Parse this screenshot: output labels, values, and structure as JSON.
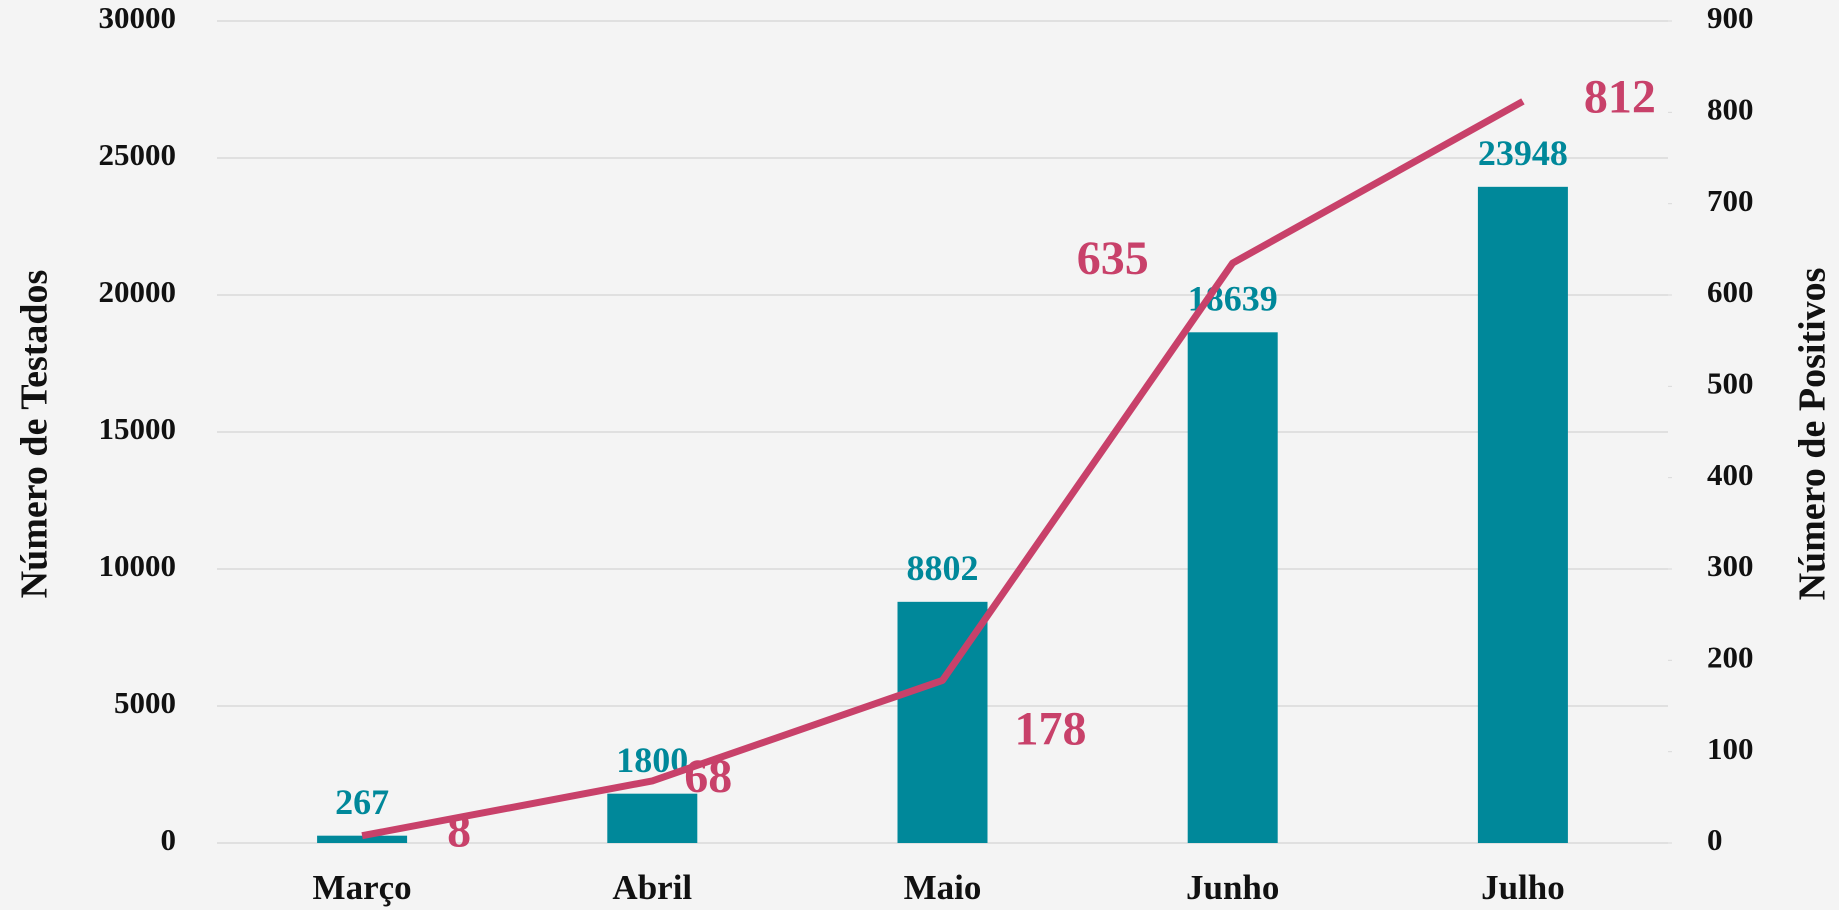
{
  "chart_data": {
    "type": "bar",
    "categories": [
      "Março",
      "Abril",
      "Maio",
      "Junho",
      "Julho"
    ],
    "series": [
      {
        "name": "Número de Testados",
        "type": "bar",
        "color": "#00889a",
        "values": [
          267,
          1800,
          8802,
          18639,
          23948
        ]
      },
      {
        "name": "Número de Positivos",
        "type": "line",
        "axis": "y2",
        "color": "#c8416a",
        "values": [
          8,
          68,
          178,
          635,
          812
        ]
      }
    ],
    "ylabel": "Número de Testados",
    "y2label": "Número de Positivos",
    "ylim": [
      0,
      30000
    ],
    "yticks": [
      0,
      5000,
      10000,
      15000,
      20000,
      25000,
      30000
    ],
    "y2lim": [
      0,
      900
    ],
    "y2ticks": [
      0,
      100,
      200,
      300,
      400,
      500,
      600,
      700,
      800,
      900
    ],
    "grid": true
  }
}
